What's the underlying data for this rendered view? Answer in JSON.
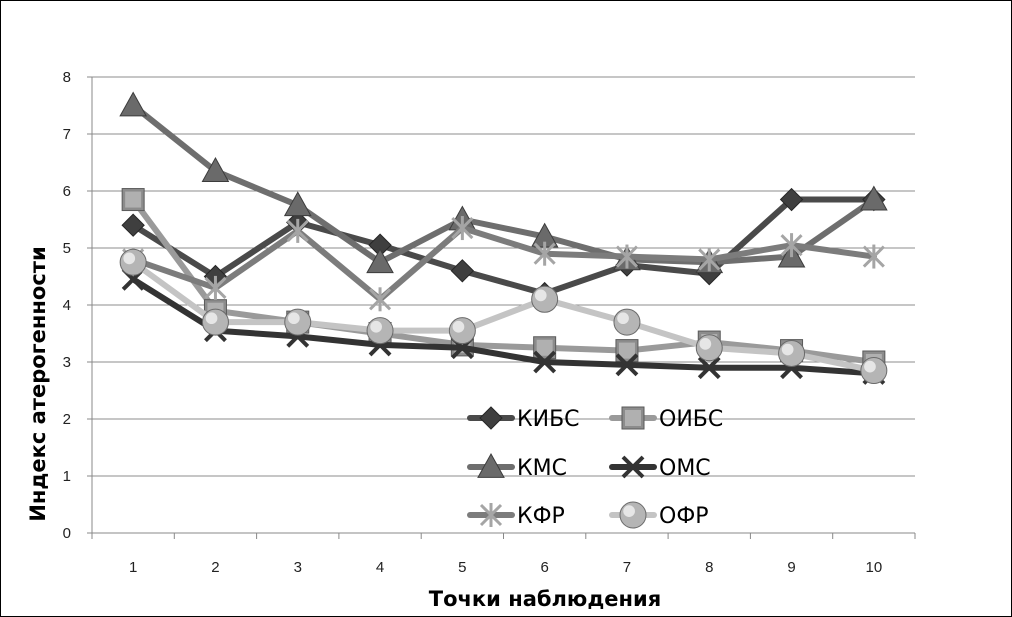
{
  "chart_data": {
    "type": "line",
    "xlabel": "Точки наблюдения",
    "ylabel": "Индекс атерогенности",
    "x": [
      1,
      2,
      3,
      4,
      5,
      6,
      7,
      8,
      9,
      10
    ],
    "ylim": [
      0,
      8
    ],
    "yticks": [
      0,
      1,
      2,
      3,
      4,
      5,
      6,
      7,
      8
    ],
    "grid": "horizontal",
    "legend_position": "lower-center",
    "series": [
      {
        "name": "КИБС",
        "marker": "diamond",
        "line_color": "#4a4a4a",
        "marker_color": "#3f3f3f",
        "values": [
          5.4,
          4.5,
          5.45,
          5.05,
          4.6,
          4.2,
          4.7,
          4.55,
          5.85,
          5.85
        ]
      },
      {
        "name": "ОИБС",
        "marker": "square",
        "line_color": "#9a9a9a",
        "marker_color": "#8c8c8c",
        "values": [
          5.85,
          3.9,
          3.7,
          3.5,
          3.3,
          3.25,
          3.2,
          3.35,
          3.2,
          3.0
        ]
      },
      {
        "name": "КМС",
        "marker": "triangle",
        "line_color": "#6e6e6e",
        "marker_color": "#6a6a6a",
        "values": [
          7.5,
          6.35,
          5.75,
          4.75,
          5.5,
          5.2,
          4.8,
          4.75,
          4.85,
          5.85
        ]
      },
      {
        "name": "ОМС",
        "marker": "x",
        "line_color": "#333333",
        "marker_color": "#333333",
        "values": [
          4.45,
          3.55,
          3.45,
          3.3,
          3.25,
          3.0,
          2.95,
          2.9,
          2.9,
          2.8
        ]
      },
      {
        "name": "КФР",
        "marker": "star",
        "line_color": "#7c7c7c",
        "marker_color": "#a5a5a5",
        "values": [
          4.8,
          4.3,
          5.3,
          4.1,
          5.35,
          4.9,
          4.85,
          4.8,
          5.05,
          4.85
        ]
      },
      {
        "name": "ОФР",
        "marker": "circle",
        "line_color": "#c4c4c4",
        "marker_color": "#b5b5b5",
        "values": [
          4.75,
          3.7,
          3.7,
          3.55,
          3.55,
          4.1,
          3.7,
          3.25,
          3.15,
          2.85
        ]
      }
    ]
  }
}
